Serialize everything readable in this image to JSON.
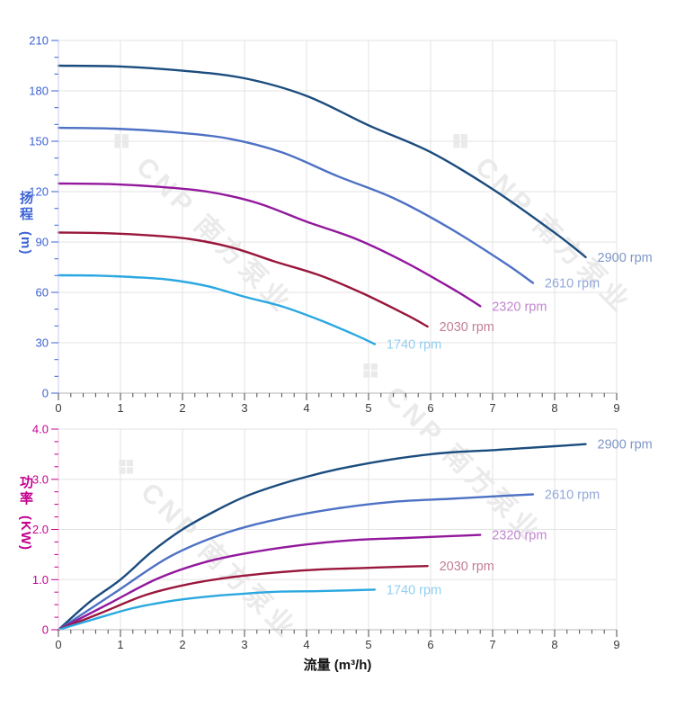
{
  "watermark": {
    "text": "CNP 南方泵业",
    "logo_icon": "cnp-logo-mark",
    "logo_glyph": "❖",
    "color": "#eaeaea"
  },
  "chart_data": [
    {
      "type": "line",
      "name": "head-curve-chart",
      "title": "",
      "ylabel": "扬程 (m)",
      "ylabel_cn": "扬程",
      "ylabel_unit": "(m)",
      "xlabel": "",
      "xlim": [
        0,
        9
      ],
      "ylim": [
        0,
        210
      ],
      "grid": true,
      "x_major": 1,
      "x_minor": 0.2,
      "y_major": 30,
      "y_minor": 10,
      "x_tick_labels": [
        "0",
        "1",
        "2",
        "3",
        "4",
        "5",
        "6",
        "7",
        "8",
        "9"
      ],
      "y_tick_labels": [
        "0",
        "30",
        "60",
        "90",
        "120",
        "150",
        "180",
        "210"
      ],
      "axis_color": "#3c63d4",
      "axis_line_color": "#c4cbe8",
      "x_axis_line_color": "#b5b5b5",
      "x_tick_color": "#4a4a4a",
      "x_label_color": "#3a3a3a",
      "grid_color": "#e3e3e3",
      "legend_position": "right-of-curve-end",
      "series": [
        {
          "label": "2900 rpm",
          "rpm": 2900,
          "color": "#1b4c7e",
          "label_color": "#7f97c6",
          "points": [
            [
              0,
              195
            ],
            [
              1,
              194.5
            ],
            [
              2,
              192
            ],
            [
              3,
              187.5
            ],
            [
              4,
              177
            ],
            [
              5,
              159.5
            ],
            [
              6,
              143.5
            ],
            [
              7,
              121.5
            ],
            [
              8,
              95.5
            ],
            [
              8.5,
              81
            ]
          ]
        },
        {
          "label": "2610 rpm",
          "rpm": 2610,
          "color": "#4e71c4",
          "label_color": "#93a9da",
          "points": [
            [
              0,
              158
            ],
            [
              0.9,
              157.5
            ],
            [
              1.8,
              155.5
            ],
            [
              2.7,
              151.9
            ],
            [
              3.6,
              143.4
            ],
            [
              4.5,
              129.2
            ],
            [
              5.4,
              116.2
            ],
            [
              6.3,
              98.4
            ],
            [
              7.2,
              77.4
            ],
            [
              7.65,
              65.6
            ]
          ]
        },
        {
          "label": "2320 rpm",
          "rpm": 2320,
          "color": "#92189c",
          "label_color": "#c186cf",
          "points": [
            [
              0,
              124.8
            ],
            [
              0.8,
              124.5
            ],
            [
              1.6,
              122.9
            ],
            [
              2.4,
              120
            ],
            [
              3.2,
              113.3
            ],
            [
              4,
              102.1
            ],
            [
              4.8,
              91.8
            ],
            [
              5.6,
              77.8
            ],
            [
              6.4,
              61.1
            ],
            [
              6.8,
              51.8
            ]
          ]
        },
        {
          "label": "2030 rpm",
          "rpm": 2030,
          "color": "#99173c",
          "label_color": "#c27f93",
          "points": [
            [
              0,
              95.6
            ],
            [
              0.7,
              95.3
            ],
            [
              1.4,
              94.1
            ],
            [
              2.1,
              91.9
            ],
            [
              2.8,
              86.7
            ],
            [
              3.5,
              78.2
            ],
            [
              4.2,
              70.3
            ],
            [
              4.9,
              59.5
            ],
            [
              5.6,
              46.8
            ],
            [
              5.95,
              39.7
            ]
          ]
        },
        {
          "label": "1740 rpm",
          "rpm": 1740,
          "color": "#2ba8e0",
          "label_color": "#93cff0",
          "points": [
            [
              0,
              70.2
            ],
            [
              0.6,
              70
            ],
            [
              1.2,
              69.1
            ],
            [
              1.8,
              67.5
            ],
            [
              2.4,
              63.7
            ],
            [
              3,
              57.4
            ],
            [
              3.6,
              51.7
            ],
            [
              4.2,
              43.7
            ],
            [
              4.8,
              34.4
            ],
            [
              5.1,
              29.2
            ]
          ]
        }
      ]
    },
    {
      "type": "line",
      "name": "power-curve-chart",
      "title": "",
      "ylabel": "功率 (KW)",
      "ylabel_cn": "功率",
      "ylabel_unit": "(KW)",
      "xlabel": "流量 (m³/h)",
      "xlim": [
        0,
        9
      ],
      "ylim": [
        0,
        4
      ],
      "grid": true,
      "x_major": 1,
      "x_minor": 0.2,
      "y_major": 1,
      "y_minor": 0.25,
      "x_tick_labels": [
        "0",
        "1",
        "2",
        "3",
        "4",
        "5",
        "6",
        "7",
        "8",
        "9"
      ],
      "y_tick_labels": [
        "0",
        "1.0",
        "2.0",
        "3.0",
        "4.0"
      ],
      "axis_color": "#c4008f",
      "axis_line_color": "#e9c4dc",
      "x_axis_line_color": "#b5b5b5",
      "x_tick_color": "#4a4a4a",
      "x_label_color": "#3a3a3a",
      "grid_color": "#e3e3e3",
      "legend_position": "right-of-curve-end",
      "series": [
        {
          "label": "2900 rpm",
          "rpm": 2900,
          "color": "#1b4c7e",
          "label_color": "#7f97c6",
          "points": [
            [
              0,
              0
            ],
            [
              0.5,
              0.55
            ],
            [
              1,
              1.0
            ],
            [
              1.5,
              1.55
            ],
            [
              2,
              2.0
            ],
            [
              2.5,
              2.35
            ],
            [
              3,
              2.65
            ],
            [
              3.5,
              2.87
            ],
            [
              4,
              3.05
            ],
            [
              4.5,
              3.2
            ],
            [
              5,
              3.32
            ],
            [
              5.5,
              3.42
            ],
            [
              6,
              3.5
            ],
            [
              6.5,
              3.55
            ],
            [
              7,
              3.58
            ],
            [
              7.5,
              3.62
            ],
            [
              8,
              3.66
            ],
            [
              8.5,
              3.7
            ]
          ]
        },
        {
          "label": "2610 rpm",
          "rpm": 2610,
          "color": "#4e71c4",
          "label_color": "#93a9da",
          "points": [
            [
              0,
              0
            ],
            [
              0.9,
              0.73
            ],
            [
              1.8,
              1.46
            ],
            [
              2.7,
              1.93
            ],
            [
              3.6,
              2.22
            ],
            [
              4.5,
              2.42
            ],
            [
              5.4,
              2.55
            ],
            [
              6.3,
              2.61
            ],
            [
              7.2,
              2.67
            ],
            [
              7.65,
              2.7
            ]
          ]
        },
        {
          "label": "2320 rpm",
          "rpm": 2320,
          "color": "#92189c",
          "label_color": "#c186cf",
          "points": [
            [
              0,
              0
            ],
            [
              0.8,
              0.51
            ],
            [
              1.6,
              1.02
            ],
            [
              2.4,
              1.36
            ],
            [
              3.2,
              1.56
            ],
            [
              4,
              1.7
            ],
            [
              4.8,
              1.79
            ],
            [
              5.6,
              1.83
            ],
            [
              6.4,
              1.87
            ],
            [
              6.8,
              1.89
            ]
          ]
        },
        {
          "label": "2030 rpm",
          "rpm": 2030,
          "color": "#99173c",
          "label_color": "#c27f93",
          "points": [
            [
              0,
              0
            ],
            [
              0.7,
              0.34
            ],
            [
              1.4,
              0.69
            ],
            [
              2.1,
              0.91
            ],
            [
              2.8,
              1.05
            ],
            [
              3.5,
              1.14
            ],
            [
              4.2,
              1.2
            ],
            [
              4.9,
              1.23
            ],
            [
              5.6,
              1.26
            ],
            [
              5.95,
              1.27
            ]
          ]
        },
        {
          "label": "1740 rpm",
          "rpm": 1740,
          "color": "#2ba8e0",
          "label_color": "#93cff0",
          "points": [
            [
              0,
              0
            ],
            [
              0.6,
              0.22
            ],
            [
              1.2,
              0.43
            ],
            [
              1.8,
              0.57
            ],
            [
              2.4,
              0.66
            ],
            [
              3,
              0.72
            ],
            [
              3.6,
              0.76
            ],
            [
              4.2,
              0.77
            ],
            [
              4.8,
              0.79
            ],
            [
              5.1,
              0.8
            ]
          ]
        }
      ]
    }
  ]
}
